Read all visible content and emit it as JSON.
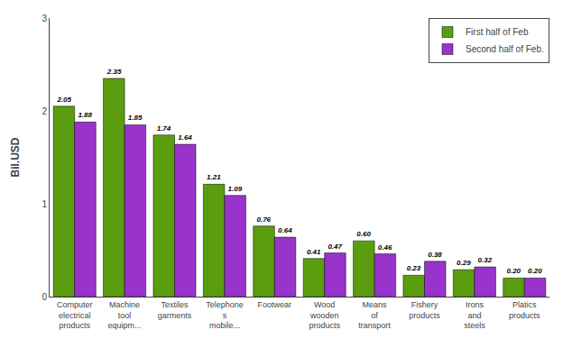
{
  "chart_data": {
    "type": "bar",
    "categories": [
      "Computer\nelectrical\nproducts",
      "Machine\ntool\nequipm...",
      "Textiles\ngarments",
      "Telephone\ns\nmobile...",
      "Footwear",
      "Wood\nwooden\nproducts",
      "Means\nof\ntransport",
      "Fishery\nproducts",
      "Irons\nand\nsteels",
      "Platics\nproducts"
    ],
    "series": [
      {
        "name": "First half of Feb",
        "color": "#5a9e0f",
        "values": [
          2.05,
          2.35,
          1.74,
          1.21,
          0.76,
          0.41,
          0.6,
          0.23,
          0.29,
          0.2
        ],
        "value_labels": [
          "2.05",
          "2.35",
          "1.74",
          "1.21",
          "0.76",
          "0.41",
          "0.60",
          "0.23",
          "0.29",
          "0.20"
        ]
      },
      {
        "name": "Second half of Feb.",
        "color": "#9933cc",
        "values": [
          1.88,
          1.85,
          1.64,
          1.09,
          0.64,
          0.47,
          0.46,
          0.38,
          0.32,
          0.2
        ],
        "value_labels": [
          "1.88",
          "1.85",
          "1.64",
          "1.09",
          "0.64",
          "0.47",
          "0.46",
          "0.38",
          "0.32",
          "0.20"
        ]
      }
    ],
    "ylabel": "Bil.USD",
    "ylim": [
      0,
      3
    ],
    "yticks": [
      0,
      1,
      2,
      3
    ],
    "grid": false,
    "legend": "upper right",
    "data_labels": true
  }
}
